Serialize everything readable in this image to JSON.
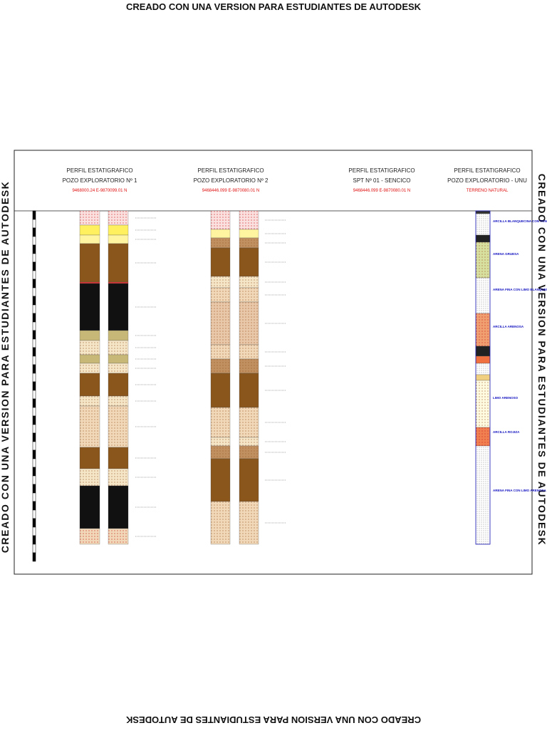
{
  "watermark": "CREADO CON UNA VERSION PARA ESTUDIANTES DE AUTODESK",
  "panels": [
    {
      "title": "PERFIL ESTATIGRAFICO",
      "subtitle": "POZO EXPLORATORIO Nº 1",
      "coords": "9468000.24 E-9870099.01 N"
    },
    {
      "title": "PERFIL ESTATIGRAFICO",
      "subtitle": "POZO EXPLORATORIO Nº 2",
      "coords": "9468446.099 E-9870080.01 N"
    },
    {
      "title": "PERFIL ESTATIGRAFICO",
      "subtitle": "SPT Nº 01 - SENCICO",
      "coords": "9468446.099 E-9870080.01 N"
    },
    {
      "title": "PERFIL ESTATIGRAFICO",
      "subtitle": "POZO EXPLORATORIO - UNU",
      "coords": "TERRENO NATURAL"
    }
  ],
  "unu_labels": [
    "ARCILLA BLANQUECINA CON TONOS NEGROS",
    "ARENA GRUESA",
    "ARENA FINA CON LIMO BLANQUECINA",
    "ARCILLA ARENOSA",
    "LIMO ARENOSO",
    "ARCILLA ROJIZA",
    "ARENA FINA CON LIMO ARENOSA"
  ]
}
